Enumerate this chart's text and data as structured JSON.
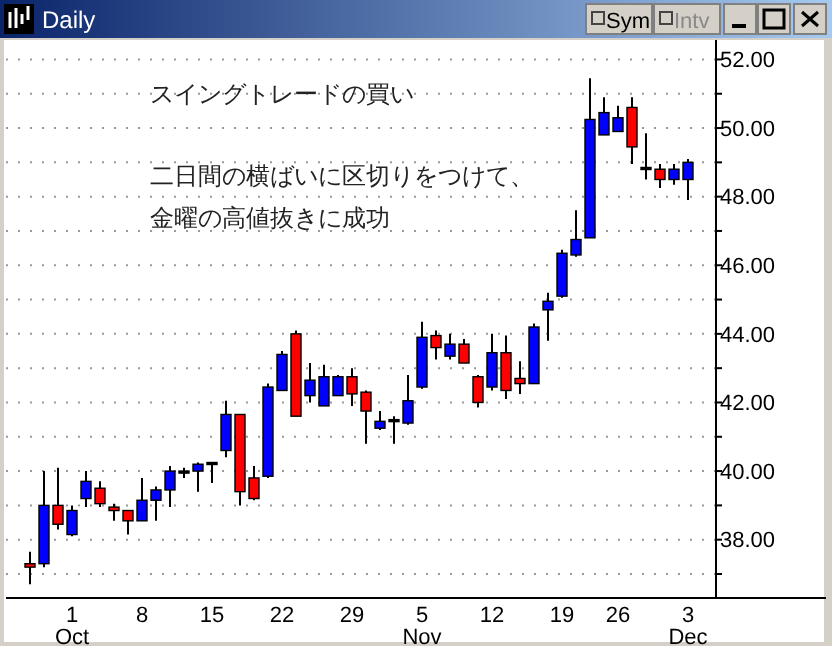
{
  "chart_data": {
    "type": "candlestick",
    "title": "Daily",
    "categories": [
      null,
      null,
      null,
      "1\nOct",
      null,
      null,
      null,
      null,
      "8",
      null,
      null,
      null,
      null,
      "15",
      null,
      null,
      null,
      null,
      "22",
      null,
      null,
      null,
      null,
      "29",
      null,
      null,
      null,
      null,
      "5\nNov",
      null,
      null,
      null,
      null,
      "12",
      null,
      null,
      null,
      null,
      "19",
      null,
      null,
      null,
      "26",
      null,
      null,
      null,
      null,
      "3\nDec"
    ],
    "ohlc": [
      [
        37.3,
        37.65,
        36.7,
        37.2
      ],
      [
        37.3,
        40.0,
        37.2,
        39.0
      ],
      [
        39.0,
        40.1,
        38.3,
        38.45
      ],
      [
        38.15,
        39.0,
        38.1,
        38.85
      ],
      [
        39.2,
        40.0,
        38.95,
        39.7
      ],
      [
        39.5,
        39.7,
        38.95,
        39.05
      ],
      [
        38.95,
        39.05,
        38.55,
        38.85
      ],
      [
        38.85,
        38.85,
        38.15,
        38.55
      ],
      [
        38.55,
        39.8,
        38.55,
        39.15
      ],
      [
        39.15,
        39.55,
        38.55,
        39.45
      ],
      [
        39.45,
        40.15,
        38.95,
        40.0
      ],
      [
        40.0,
        40.1,
        39.8,
        40.0
      ],
      [
        40.0,
        40.25,
        39.4,
        40.2
      ],
      [
        40.2,
        40.25,
        39.65,
        40.25
      ],
      [
        40.6,
        42.05,
        40.4,
        41.65
      ],
      [
        41.65,
        41.65,
        39.0,
        39.4
      ],
      [
        39.8,
        40.15,
        39.15,
        39.2
      ],
      [
        39.85,
        42.55,
        39.8,
        42.45
      ],
      [
        42.35,
        43.5,
        42.35,
        43.4
      ],
      [
        44.0,
        44.1,
        41.6,
        41.6
      ],
      [
        42.2,
        43.15,
        42.0,
        42.65
      ],
      [
        41.9,
        43.1,
        41.9,
        42.75
      ],
      [
        42.2,
        42.8,
        42.2,
        42.75
      ],
      [
        42.75,
        43.0,
        41.9,
        42.25
      ],
      [
        42.3,
        42.35,
        40.8,
        41.75
      ],
      [
        41.25,
        41.75,
        41.2,
        41.45
      ],
      [
        41.5,
        41.6,
        40.8,
        41.5
      ],
      [
        41.4,
        42.8,
        41.35,
        42.05
      ],
      [
        42.45,
        44.35,
        42.4,
        43.9
      ],
      [
        43.95,
        44.1,
        43.25,
        43.6
      ],
      [
        43.35,
        44.0,
        43.25,
        43.7
      ],
      [
        43.7,
        43.85,
        43.15,
        43.15
      ],
      [
        42.75,
        42.8,
        41.85,
        42.0
      ],
      [
        42.45,
        44.0,
        42.35,
        43.45
      ],
      [
        43.45,
        43.95,
        42.1,
        42.35
      ],
      [
        42.7,
        43.2,
        42.25,
        42.55
      ],
      [
        42.55,
        44.3,
        42.55,
        44.2
      ],
      [
        44.7,
        45.2,
        43.8,
        44.95
      ],
      [
        45.1,
        46.45,
        45.05,
        46.35
      ],
      [
        46.3,
        47.6,
        46.25,
        46.75
      ],
      [
        46.8,
        51.45,
        46.8,
        50.25
      ],
      [
        49.8,
        50.9,
        49.8,
        50.45
      ],
      [
        49.9,
        50.65,
        49.9,
        50.3
      ],
      [
        50.6,
        50.9,
        48.95,
        49.45
      ],
      [
        48.85,
        49.85,
        48.5,
        48.85
      ],
      [
        48.8,
        48.95,
        48.25,
        48.5
      ],
      [
        48.5,
        48.95,
        48.35,
        48.8
      ],
      [
        48.5,
        49.1,
        47.9,
        49.0
      ]
    ],
    "colors": [
      "#ff0000",
      "#0000ff",
      "#ff0000",
      "#0000ff",
      "#0000ff",
      "#ff0000",
      "#ff0000",
      "#ff0000",
      "#0000ff",
      "#0000ff",
      "#0000ff",
      "#000000",
      "#0000ff",
      "#000000",
      "#0000ff",
      "#ff0000",
      "#ff0000",
      "#0000ff",
      "#0000ff",
      "#ff0000",
      "#0000ff",
      "#0000ff",
      "#0000ff",
      "#ff0000",
      "#ff0000",
      "#0000ff",
      "#000000",
      "#0000ff",
      "#0000ff",
      "#ff0000",
      "#0000ff",
      "#ff0000",
      "#ff0000",
      "#0000ff",
      "#ff0000",
      "#ff0000",
      "#0000ff",
      "#0000ff",
      "#0000ff",
      "#0000ff",
      "#0000ff",
      "#0000ff",
      "#0000ff",
      "#ff0000",
      "#000000",
      "#ff0000",
      "#0000ff",
      "#0000ff"
    ],
    "ylim": [
      36.3,
      52.45
    ],
    "yticks": [
      {
        "value": 37,
        "label": null
      },
      {
        "value": 38,
        "label": "38.00"
      },
      {
        "value": 39,
        "label": null
      },
      {
        "value": 40,
        "label": "40.00"
      },
      {
        "value": 41,
        "label": null
      },
      {
        "value": 42,
        "label": "42.00"
      },
      {
        "value": 43,
        "label": null
      },
      {
        "value": 44,
        "label": "44.00"
      },
      {
        "value": 45,
        "label": null
      },
      {
        "value": 46,
        "label": "46.00"
      },
      {
        "value": 47,
        "label": null
      },
      {
        "value": 48,
        "label": "48.00"
      },
      {
        "value": 49,
        "label": null
      },
      {
        "value": 50,
        "label": "50.00"
      },
      {
        "value": 51,
        "label": null
      },
      {
        "value": 52,
        "label": "52.00"
      }
    ],
    "grid": "y",
    "annotations": [
      "スイングトレードの買い",
      "二日間の横ばいに区切りをつけて、",
      "金曜の高値抜きに成功",
      "Sym",
      "Intv"
    ]
  }
}
